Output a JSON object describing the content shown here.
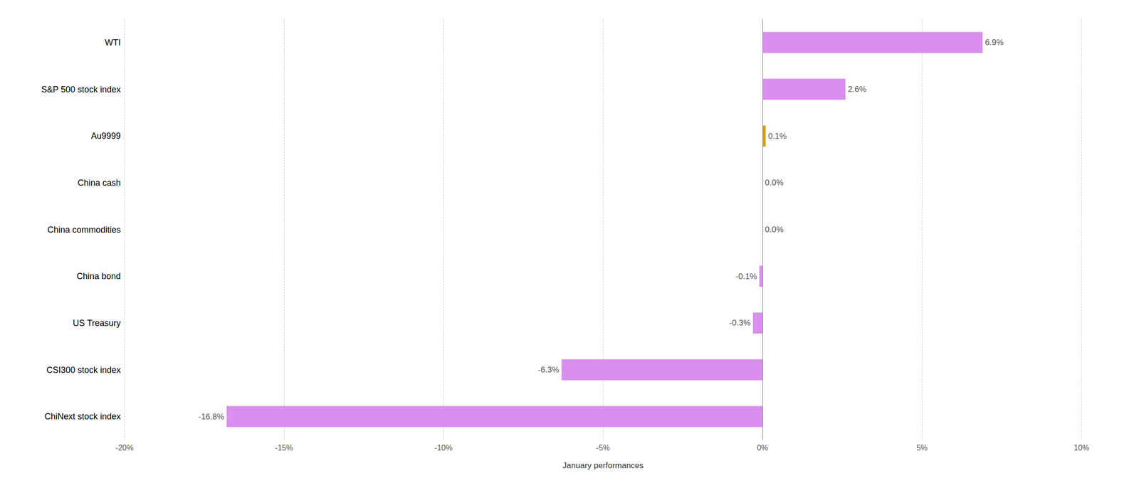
{
  "chart_data": {
    "type": "bar",
    "orientation": "horizontal",
    "categories": [
      "WTI",
      "S&P 500 stock index",
      "Au9999",
      "China cash",
      "China commodities",
      "China bond",
      "US Treasury",
      "CSI300 stock index",
      "ChiNext stock index"
    ],
    "values": [
      6.9,
      2.6,
      0.1,
      0.0,
      0.0,
      -0.1,
      -0.3,
      -6.3,
      -16.8
    ],
    "value_labels": [
      "6.9%",
      "2.6%",
      "0.1%",
      "0.0%",
      "0.0%",
      "-0.1%",
      "-0.3%",
      "-6.3%",
      "-16.8%"
    ],
    "colors": [
      "#da8fef",
      "#da8fef",
      "#d4a017",
      "#da8fef",
      "#da8fef",
      "#da8fef",
      "#da8fef",
      "#da8fef",
      "#da8fef"
    ],
    "xlabel": "January performances",
    "xlim": [
      -20,
      10
    ],
    "xticks": [
      {
        "value": -20,
        "label": "-20%"
      },
      {
        "value": -15,
        "label": "-15%"
      },
      {
        "value": -10,
        "label": "-10%"
      },
      {
        "value": -5,
        "label": "-5%"
      },
      {
        "value": 0,
        "label": "0%"
      },
      {
        "value": 5,
        "label": "5%"
      },
      {
        "value": 10,
        "label": "10%"
      }
    ],
    "grid": true,
    "data_labels": true
  }
}
